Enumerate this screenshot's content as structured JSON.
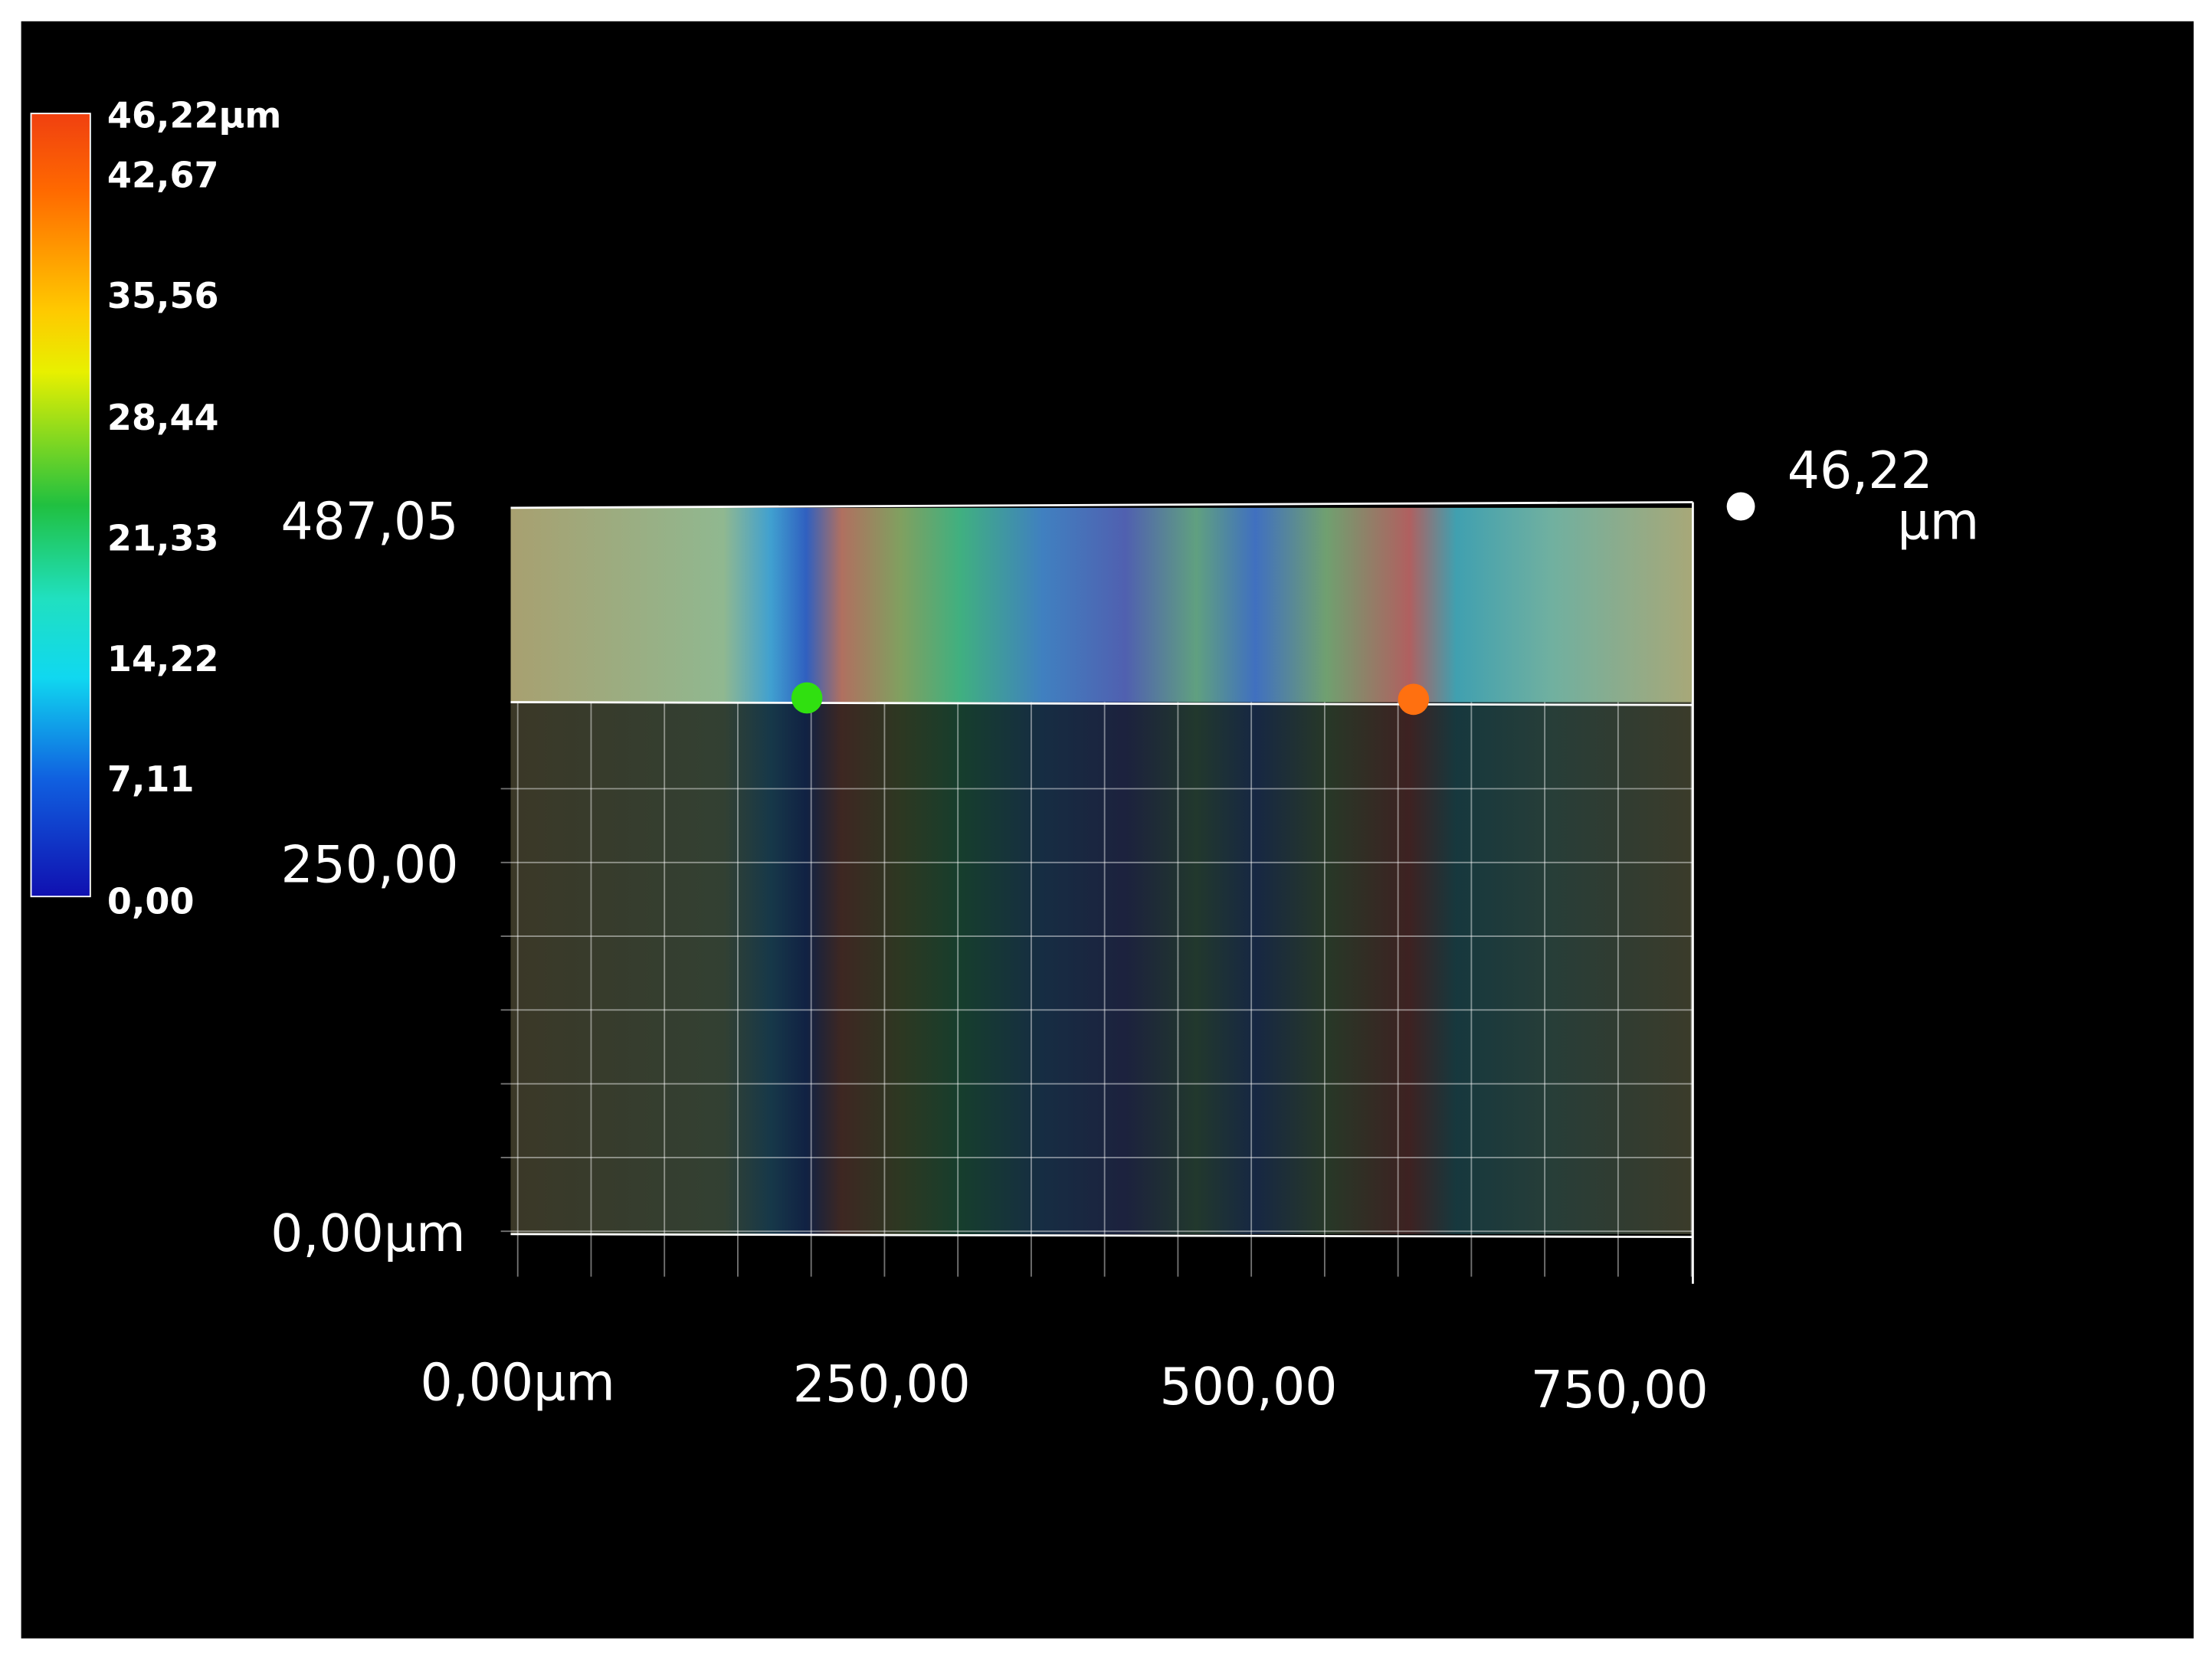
{
  "colorbar": {
    "labels": [
      "46,22µm",
      "42,67",
      "35,56",
      "28,44",
      "21,33",
      "14,22",
      "7,11",
      "0,00"
    ]
  },
  "y_axis": {
    "labels": [
      "487,05",
      "250,00",
      "0,00µm"
    ]
  },
  "x_axis": {
    "labels": [
      "0,00µm",
      "250,00",
      "500,00",
      "750,00"
    ]
  },
  "height_marker": {
    "value": "46,22",
    "unit": "µm"
  }
}
